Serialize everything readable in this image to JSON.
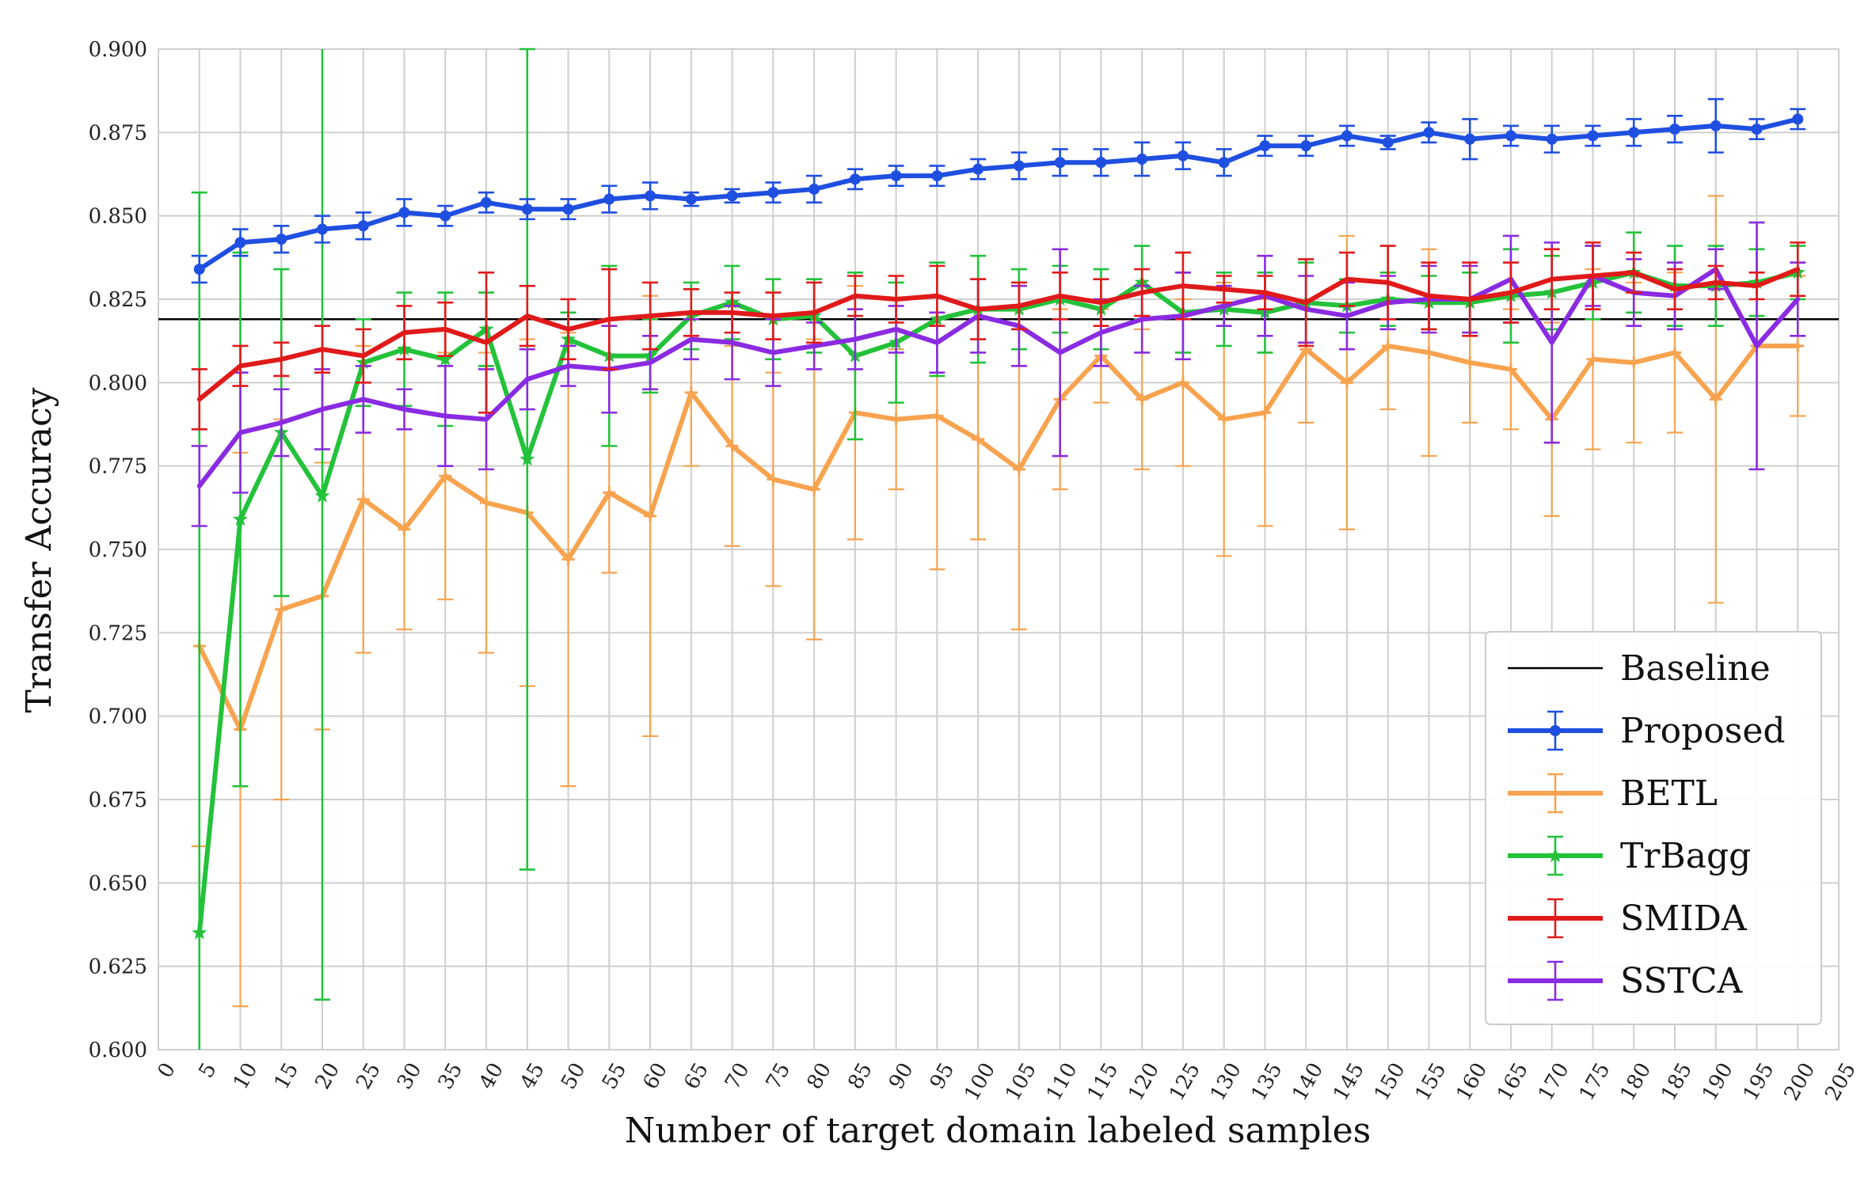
{
  "chart_data": {
    "type": "line",
    "title": "",
    "xlabel": "Number of target domain labeled samples",
    "ylabel": "Transfer Accuracy",
    "xlim": [
      0,
      205
    ],
    "ylim": [
      0.6,
      0.9
    ],
    "x_ticks": [
      0,
      5,
      10,
      15,
      20,
      25,
      30,
      35,
      40,
      45,
      50,
      55,
      60,
      65,
      70,
      75,
      80,
      85,
      90,
      95,
      100,
      105,
      110,
      115,
      120,
      125,
      130,
      135,
      140,
      145,
      150,
      155,
      160,
      165,
      170,
      175,
      180,
      185,
      190,
      195,
      200,
      205
    ],
    "y_ticks": [
      0.6,
      0.625,
      0.65,
      0.675,
      0.7,
      0.725,
      0.75,
      0.775,
      0.8,
      0.825,
      0.85,
      0.875,
      0.9
    ],
    "y_tick_labels": [
      "0.600",
      "0.625",
      "0.650",
      "0.675",
      "0.700",
      "0.725",
      "0.750",
      "0.775",
      "0.800",
      "0.825",
      "0.850",
      "0.875",
      "0.900"
    ],
    "grid": true,
    "legend_position": "bottom-right",
    "x": [
      5,
      10,
      15,
      20,
      25,
      30,
      35,
      40,
      45,
      50,
      55,
      60,
      65,
      70,
      75,
      80,
      85,
      90,
      95,
      100,
      105,
      110,
      115,
      120,
      125,
      130,
      135,
      140,
      145,
      150,
      155,
      160,
      165,
      170,
      175,
      180,
      185,
      190,
      195,
      200
    ],
    "baseline": {
      "name": "Baseline",
      "value": 0.819,
      "color": "#000000"
    },
    "series": [
      {
        "name": "Proposed",
        "color": "#1f4fe0",
        "marker": "circle",
        "values": [
          0.834,
          0.842,
          0.843,
          0.846,
          0.847,
          0.851,
          0.85,
          0.854,
          0.852,
          0.852,
          0.855,
          0.856,
          0.855,
          0.856,
          0.857,
          0.858,
          0.861,
          0.862,
          0.862,
          0.864,
          0.865,
          0.866,
          0.866,
          0.867,
          0.868,
          0.866,
          0.871,
          0.871,
          0.874,
          0.872,
          0.875,
          0.873,
          0.874,
          0.873,
          0.874,
          0.875,
          0.876,
          0.877,
          0.876,
          0.879
        ],
        "err": [
          0.004,
          0.004,
          0.004,
          0.004,
          0.004,
          0.004,
          0.003,
          0.003,
          0.003,
          0.003,
          0.004,
          0.004,
          0.002,
          0.002,
          0.003,
          0.004,
          0.003,
          0.003,
          0.003,
          0.003,
          0.004,
          0.004,
          0.004,
          0.005,
          0.004,
          0.004,
          0.003,
          0.003,
          0.003,
          0.002,
          0.003,
          0.006,
          0.003,
          0.004,
          0.003,
          0.004,
          0.004,
          0.008,
          0.003,
          0.003
        ]
      },
      {
        "name": "BETL",
        "color": "#f7a34f",
        "marker": "plus",
        "values": [
          0.721,
          0.696,
          0.732,
          0.736,
          0.765,
          0.756,
          0.772,
          0.764,
          0.761,
          0.747,
          0.767,
          0.76,
          0.797,
          0.781,
          0.771,
          0.768,
          0.791,
          0.789,
          0.79,
          0.783,
          0.774,
          0.795,
          0.808,
          0.795,
          0.8,
          0.789,
          0.791,
          0.81,
          0.8,
          0.811,
          0.809,
          0.806,
          0.804,
          0.789,
          0.807,
          0.806,
          0.809,
          0.795,
          0.811,
          0.811
        ],
        "err": [
          0.06,
          0.083,
          0.057,
          0.04,
          0.046,
          0.03,
          0.037,
          0.045,
          0.052,
          0.068,
          0.024,
          0.066,
          0.022,
          0.03,
          0.032,
          0.045,
          0.038,
          0.021,
          0.046,
          0.03,
          0.048,
          0.027,
          0.014,
          0.021,
          0.025,
          0.041,
          0.034,
          0.022,
          0.044,
          0.019,
          0.031,
          0.018,
          0.018,
          0.029,
          0.027,
          0.024,
          0.024,
          0.061,
          0.037,
          0.021
        ]
      },
      {
        "name": "TrBagg",
        "color": "#23c23a",
        "marker": "star",
        "values": [
          0.635,
          0.759,
          0.785,
          0.766,
          0.806,
          0.81,
          0.807,
          0.816,
          0.777,
          0.813,
          0.808,
          0.808,
          0.82,
          0.824,
          0.819,
          0.82,
          0.808,
          0.812,
          0.819,
          0.822,
          0.822,
          0.825,
          0.822,
          0.83,
          0.821,
          0.822,
          0.821,
          0.824,
          0.823,
          0.825,
          0.824,
          0.824,
          0.826,
          0.827,
          0.83,
          0.833,
          0.829,
          0.829,
          0.83,
          0.833
        ],
        "err": [
          0.222,
          0.08,
          0.049,
          0.151,
          0.013,
          0.017,
          0.02,
          0.011,
          0.123,
          0.008,
          0.027,
          0.011,
          0.01,
          0.011,
          0.012,
          0.011,
          0.025,
          0.018,
          0.017,
          0.016,
          0.012,
          0.01,
          0.012,
          0.011,
          0.012,
          0.011,
          0.012,
          0.012,
          0.008,
          0.008,
          0.008,
          0.009,
          0.014,
          0.011,
          0.011,
          0.012,
          0.012,
          0.012,
          0.01,
          0.008
        ]
      },
      {
        "name": "SMIDA",
        "color": "#e01a1a",
        "marker": "none",
        "values": [
          0.795,
          0.805,
          0.807,
          0.81,
          0.808,
          0.815,
          0.816,
          0.812,
          0.82,
          0.816,
          0.819,
          0.82,
          0.821,
          0.821,
          0.82,
          0.821,
          0.826,
          0.825,
          0.826,
          0.822,
          0.823,
          0.826,
          0.824,
          0.827,
          0.829,
          0.828,
          0.827,
          0.824,
          0.831,
          0.83,
          0.826,
          0.825,
          0.827,
          0.831,
          0.832,
          0.833,
          0.828,
          0.83,
          0.829,
          0.834
        ],
        "err": [
          0.009,
          0.006,
          0.005,
          0.007,
          0.008,
          0.008,
          0.008,
          0.021,
          0.009,
          0.009,
          0.015,
          0.01,
          0.007,
          0.006,
          0.007,
          0.009,
          0.006,
          0.007,
          0.009,
          0.009,
          0.007,
          0.007,
          0.007,
          0.007,
          0.01,
          0.004,
          0.005,
          0.013,
          0.008,
          0.011,
          0.01,
          0.011,
          0.009,
          0.009,
          0.01,
          0.006,
          0.006,
          0.005,
          0.004,
          0.008
        ]
      },
      {
        "name": "SSTCA",
        "color": "#8a2be2",
        "marker": "none",
        "values": [
          0.769,
          0.785,
          0.788,
          0.792,
          0.795,
          0.792,
          0.79,
          0.789,
          0.801,
          0.805,
          0.804,
          0.806,
          0.813,
          0.812,
          0.809,
          0.811,
          0.813,
          0.816,
          0.812,
          0.82,
          0.817,
          0.809,
          0.815,
          0.819,
          0.82,
          0.823,
          0.826,
          0.822,
          0.82,
          0.824,
          0.825,
          0.825,
          0.831,
          0.812,
          0.832,
          0.827,
          0.826,
          0.834,
          0.811,
          0.825
        ],
        "err": [
          0.012,
          0.018,
          0.01,
          0.012,
          0.01,
          0.006,
          0.015,
          0.015,
          0.009,
          0.006,
          0.013,
          0.008,
          0.006,
          0.011,
          0.01,
          0.007,
          0.009,
          0.007,
          0.009,
          0.011,
          0.012,
          0.031,
          0.01,
          0.01,
          0.013,
          0.006,
          0.012,
          0.01,
          0.01,
          0.008,
          0.01,
          0.01,
          0.013,
          0.03,
          0.009,
          0.01,
          0.01,
          0.006,
          0.037,
          0.011
        ]
      }
    ]
  }
}
